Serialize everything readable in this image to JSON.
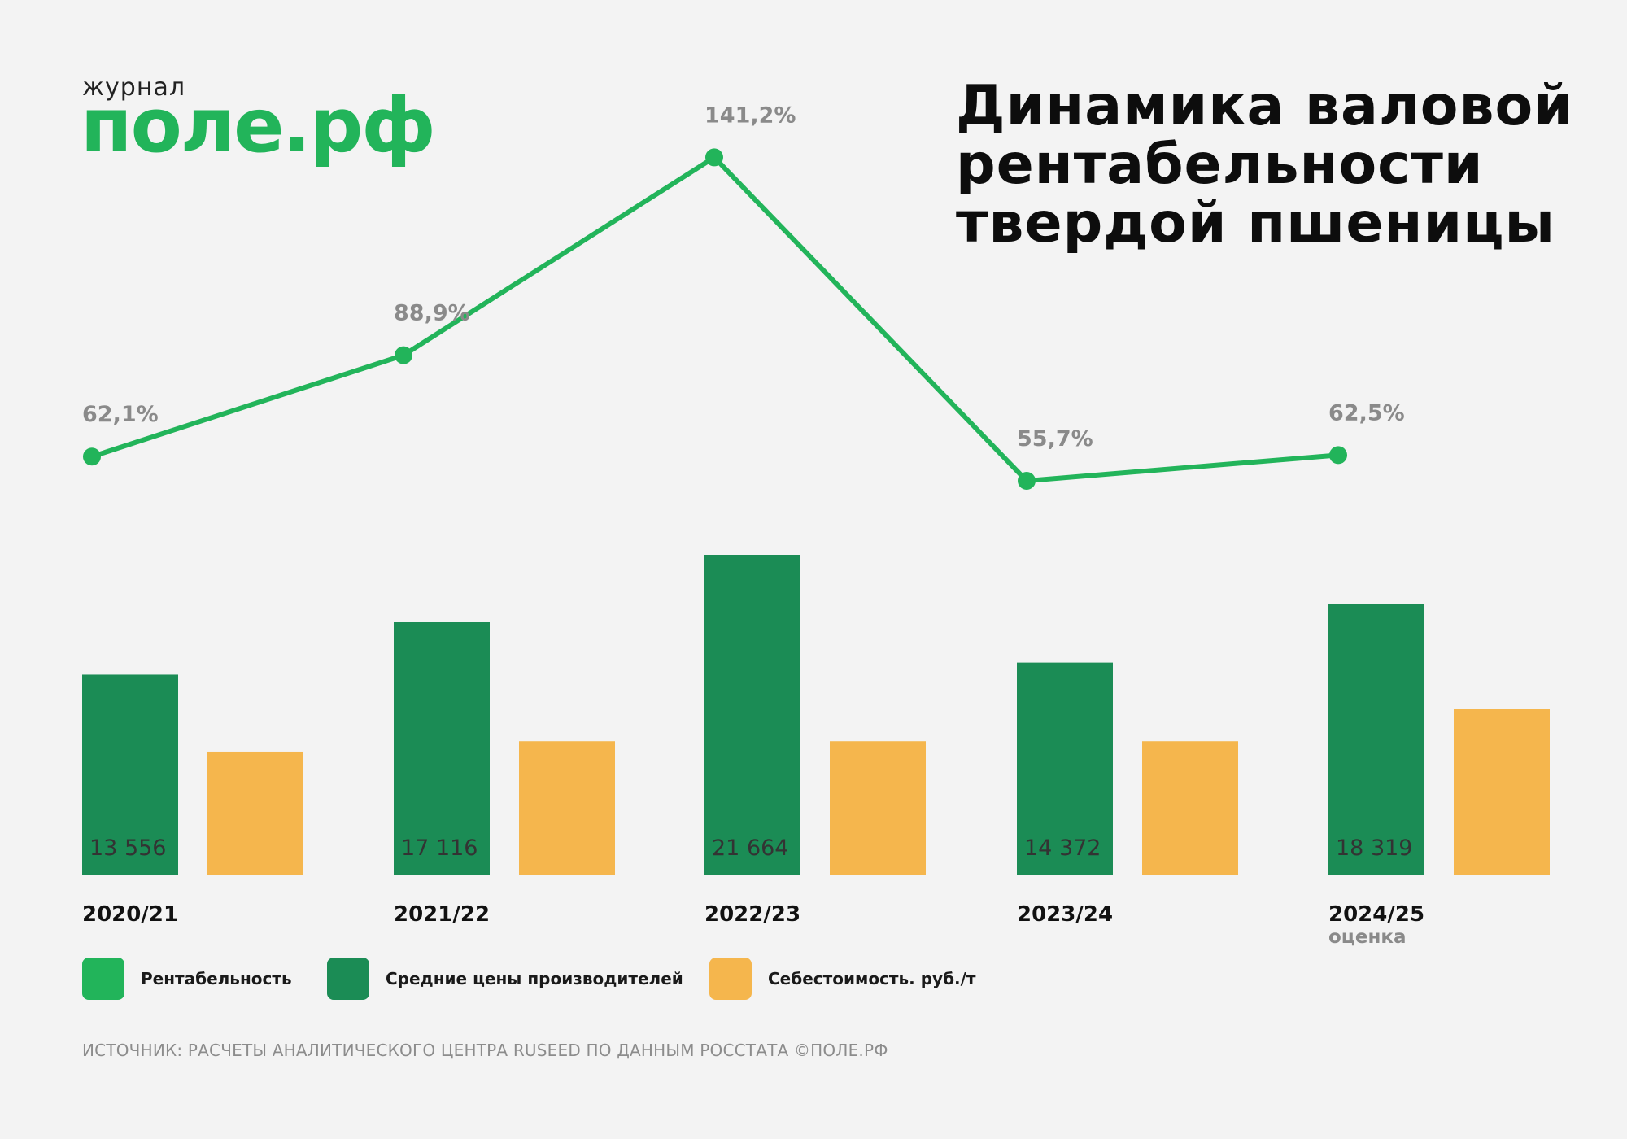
{
  "brand": {
    "small": "журнал",
    "big": "поле.рф"
  },
  "title_lines": [
    "Динамика валовой",
    "рентабельности",
    "твердой пшеницы"
  ],
  "chart_data": {
    "type": "bar",
    "categories": [
      "2020/21",
      "2021/22",
      "2022/23",
      "2023/24",
      "2024/25"
    ],
    "category_notes": [
      "",
      "",
      "",
      "",
      "оценка"
    ],
    "series": [
      {
        "name": "Средние цены производителей",
        "kind": "bar",
        "color": "#1b8c55",
        "values": [
          13556,
          17116,
          21664,
          14372,
          18319
        ],
        "labels": [
          "13 556",
          "17 116",
          "21 664",
          "14 372",
          "18 319"
        ]
      },
      {
        "name": "Себестоимость. руб./т",
        "kind": "bar",
        "color": "#f5b64d",
        "values": [
          8360,
          9060,
          9060,
          9060,
          11260
        ]
      },
      {
        "name": "Рентабельность",
        "kind": "line",
        "color": "#22b45a",
        "values": [
          62.1,
          88.9,
          141.2,
          55.7,
          62.5
        ],
        "labels": [
          "62,1%",
          "88,9%",
          "141,2%",
          "55,7%",
          "62,5%"
        ]
      }
    ],
    "label_color": "#8a8a8a",
    "value_label_color": "#333333"
  },
  "legend": [
    {
      "label": "Рентабельность",
      "color": "#22b45a"
    },
    {
      "label": "Средние цены производителей",
      "color": "#1b8c55"
    },
    {
      "label": "Себестоимость. руб./т",
      "color": "#f5b64d"
    }
  ],
  "source": "ИСТОЧНИК: РАСЧЕТЫ АНАЛИТИЧЕСКОГО ЦЕНТРА RUSEED ПО ДАННЫМ РОССТАТА ©ПОЛЕ.РФ"
}
